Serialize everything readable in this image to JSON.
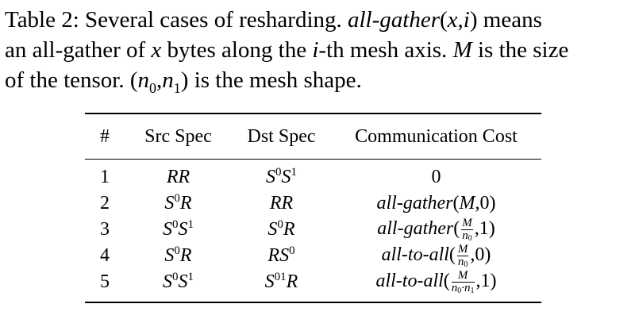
{
  "caption": {
    "line1_label": "Table 2: Several cases of resharding. ",
    "line1_func": "all-gather",
    "line1_args": "(x,i)",
    "line1_tail": " means",
    "line2_a": "an all-gather of ",
    "line2_x": "x",
    "line2_b": " bytes along the ",
    "line2_i": "i",
    "line2_c": "-th mesh axis. ",
    "line2_M": "M",
    "line2_d": " is the size",
    "line3_a": "of the tensor. ",
    "line3_shape": "(n0,n1)",
    "line3_b": " is the mesh shape."
  },
  "table": {
    "headers": [
      "#",
      "Src Spec",
      "Dst Spec",
      "Communication Cost"
    ],
    "rows": [
      {
        "num": "1",
        "src": "RR",
        "dst": "S0S1",
        "cost": "0"
      },
      {
        "num": "2",
        "src": "S0R",
        "dst": "RR",
        "cost": "all-gather(M,0)"
      },
      {
        "num": "3",
        "src": "S0S1",
        "dst": "S0R",
        "cost": "all-gather(M/n0,1)"
      },
      {
        "num": "4",
        "src": "S0R",
        "dst": "RS0",
        "cost": "all-to-all(M/n0,0)"
      },
      {
        "num": "5",
        "src": "S0S1",
        "dst": "S01R",
        "cost": "all-to-all(M/(n0·n1),1)"
      }
    ]
  }
}
